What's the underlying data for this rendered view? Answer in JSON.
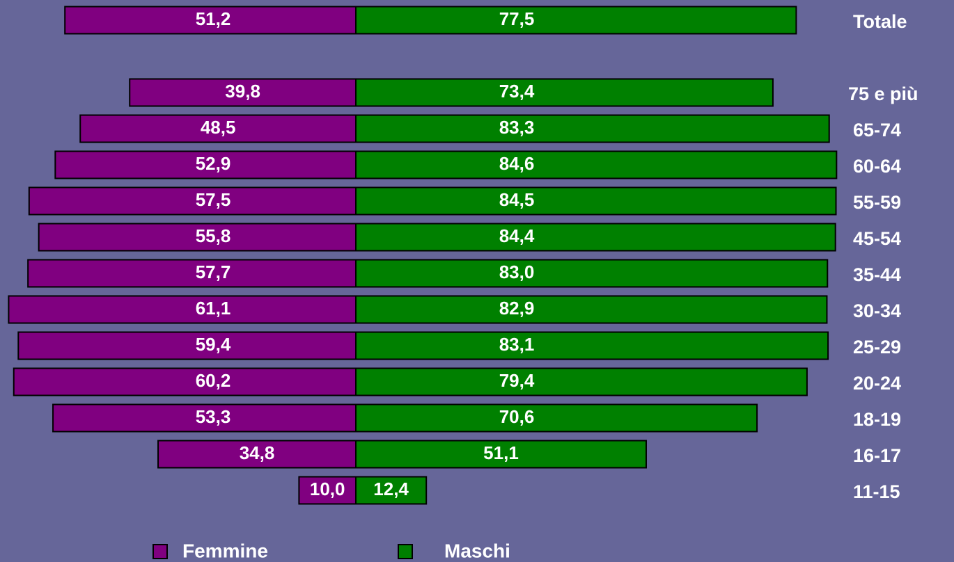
{
  "chart_data": {
    "type": "butterfly-bar",
    "categories": [
      "Totale",
      "75 e più",
      "65-74",
      "60-64",
      "55-59",
      "45-54",
      "35-44",
      "30-34",
      "25-29",
      "20-24",
      "18-19",
      "16-17",
      "11-15"
    ],
    "series": [
      {
        "name": "Femmine",
        "color": "#800080",
        "values": [
          51.2,
          39.8,
          48.5,
          52.9,
          57.5,
          55.8,
          57.7,
          61.1,
          59.4,
          60.2,
          53.3,
          34.8,
          10.0
        ],
        "value_labels": [
          "51,2",
          "39,8",
          "48,5",
          "52,9",
          "57,5",
          "55,8",
          "57,7",
          "61,1",
          "59,4",
          "60,2",
          "53,3",
          "34,8",
          "10,0"
        ]
      },
      {
        "name": "Maschi",
        "color": "#008000",
        "values": [
          77.5,
          73.4,
          83.3,
          84.6,
          84.5,
          84.4,
          83.0,
          82.9,
          83.1,
          79.4,
          70.6,
          51.1,
          12.4
        ],
        "value_labels": [
          "77,5",
          "73,4",
          "83,3",
          "84,6",
          "84,5",
          "84,4",
          "83,0",
          "82,9",
          "83,1",
          "79,4",
          "70,6",
          "51,1",
          "12,4"
        ]
      }
    ]
  }
}
